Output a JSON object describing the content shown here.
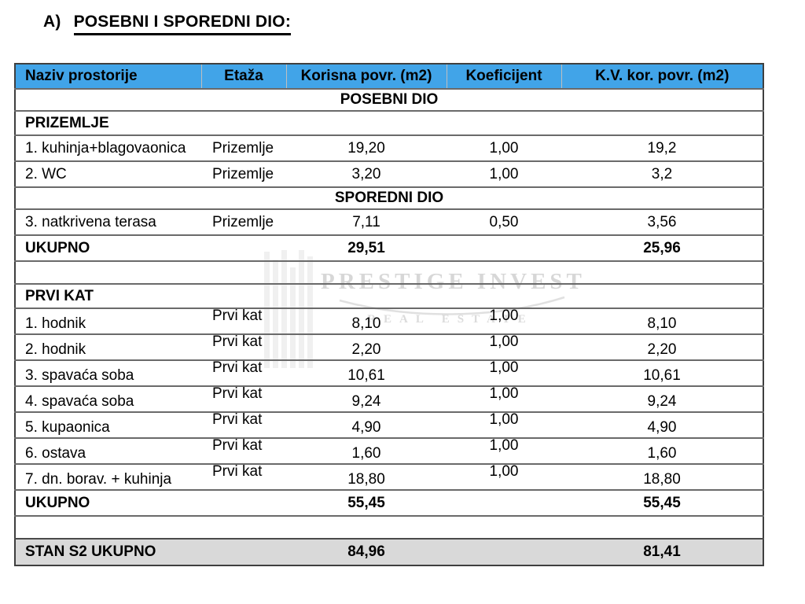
{
  "page": {
    "title_prefix": "A)",
    "title": "POSEBNI I SPOREDNI DIO:"
  },
  "colors": {
    "header_bg": "#41a4e8",
    "summary_bg": "#d9d9d9",
    "border": "#6a6a6a",
    "outer_border": "#3f3f3f",
    "watermark": "#a8a8a8"
  },
  "watermark": {
    "line1": "PRESTIGE INVEST",
    "line2": "REAL ESTATE"
  },
  "table": {
    "columns": [
      "Naziv prostorije",
      "Etaža",
      "Korisna povr. (m2)",
      "Koeficijent",
      "K.V. kor. povr. (m2)"
    ],
    "rows": [
      {
        "type": "section",
        "label": "POSEBNI DIO"
      },
      {
        "type": "group",
        "label": "PRIZEMLJE"
      },
      {
        "type": "data",
        "name": "1. kuhinja+blagovaonica",
        "etaza": "Prizemlje",
        "korisna": "19,20",
        "koef": "1,00",
        "kv": "19,2"
      },
      {
        "type": "data",
        "name": "2. WC",
        "etaza": "Prizemlje",
        "korisna": "3,20",
        "koef": "1,00",
        "kv": "3,2"
      },
      {
        "type": "section",
        "label": "SPOREDNI DIO"
      },
      {
        "type": "data",
        "name": "3. natkrivena terasa",
        "etaza": "Prizemlje",
        "korisna": "7,11",
        "koef": "0,50",
        "kv": "3,56"
      },
      {
        "type": "total",
        "label": "UKUPNO",
        "korisna": "29,51",
        "kv": "25,96"
      },
      {
        "type": "empty"
      },
      {
        "type": "group",
        "label": "PRVI KAT"
      },
      {
        "type": "data",
        "name": "1. hodnik",
        "etaza": "Prvi kat",
        "korisna": "8,10",
        "koef": "1,00",
        "kv": "8,10"
      },
      {
        "type": "data",
        "name": "2. hodnik",
        "etaza": "Prvi kat",
        "korisna": "2,20",
        "koef": "1,00",
        "kv": "2,20"
      },
      {
        "type": "data",
        "name": "3. spavaća soba",
        "etaza": "Prvi kat",
        "korisna": "10,61",
        "koef": "1,00",
        "kv": "10,61"
      },
      {
        "type": "data",
        "name": "4. spavaća soba",
        "etaza": "Prvi kat",
        "korisna": "9,24",
        "koef": "1,00",
        "kv": "9,24"
      },
      {
        "type": "data",
        "name": "5. kupaonica",
        "etaza": "Prvi kat",
        "korisna": "4,90",
        "koef": "1,00",
        "kv": "4,90"
      },
      {
        "type": "data",
        "name": "6. ostava",
        "etaza": "Prvi kat",
        "korisna": "1,60",
        "koef": "1,00",
        "kv": "1,60"
      },
      {
        "type": "data",
        "name": "7. dn. borav. + kuhinja",
        "etaza": "Prvi kat",
        "korisna": "18,80",
        "koef": "1,00",
        "kv": "18,80"
      },
      {
        "type": "total",
        "label": "UKUPNO",
        "korisna": "55,45",
        "kv": "55,45"
      },
      {
        "type": "empty"
      },
      {
        "type": "grand",
        "label": "STAN S2 UKUPNO",
        "korisna": "84,96",
        "kv": "81,41"
      }
    ]
  }
}
